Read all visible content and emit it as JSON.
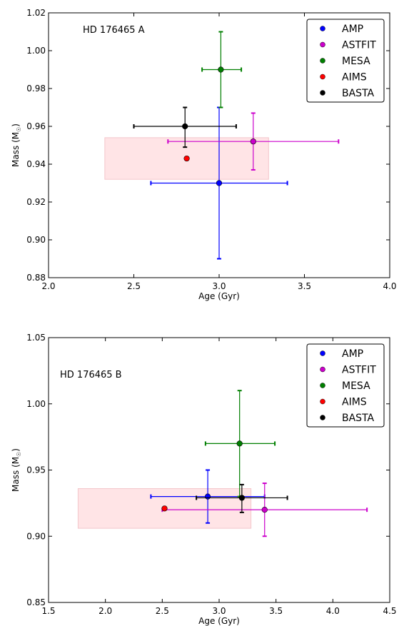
{
  "chart_data": [
    {
      "type": "scatter",
      "annotation": "HD 176465 A",
      "xlabel": "Age (Gyr)",
      "ylabel": "Mass (M",
      "ylabel_sub": "☉",
      "ylabel_close": ")",
      "xlim": [
        2.0,
        4.0
      ],
      "ylim": [
        0.88,
        1.02
      ],
      "xticks": [
        2.0,
        2.5,
        3.0,
        3.5,
        4.0
      ],
      "xtick_labels": [
        "2.0",
        "2.5",
        "3.0",
        "3.5",
        "4.0"
      ],
      "yticks": [
        0.88,
        0.9,
        0.92,
        0.94,
        0.96,
        0.98,
        1.0,
        1.02
      ],
      "ytick_labels": [
        "0.88",
        "0.90",
        "0.92",
        "0.94",
        "0.96",
        "0.98",
        "1.00",
        "1.02"
      ],
      "legend_position": "top-right",
      "shaded_region": {
        "x": [
          2.33,
          3.29
        ],
        "y": [
          0.932,
          0.954
        ],
        "color": "#ffe4e6"
      },
      "series": [
        {
          "name": "AMP",
          "color": "#0000ff",
          "x": 3.0,
          "y": 0.93,
          "xerr": [
            2.6,
            3.4
          ],
          "yerr": [
            0.89,
            0.97
          ]
        },
        {
          "name": "ASTFIT",
          "color": "#cc00cc",
          "x": 3.2,
          "y": 0.952,
          "xerr": [
            2.7,
            3.7
          ],
          "yerr": [
            0.937,
            0.967
          ]
        },
        {
          "name": "MESA",
          "color": "#007f00",
          "x": 3.01,
          "y": 0.99,
          "xerr": [
            2.9,
            3.13
          ],
          "yerr": [
            0.97,
            1.01
          ]
        },
        {
          "name": "AIMS",
          "color": "#ff0000",
          "x": 2.81,
          "y": 0.943,
          "xerr": null,
          "yerr": null
        },
        {
          "name": "BASTA",
          "color": "#000000",
          "x": 2.8,
          "y": 0.96,
          "xerr": [
            2.5,
            3.1
          ],
          "yerr": [
            0.949,
            0.97
          ]
        }
      ]
    },
    {
      "type": "scatter",
      "annotation": "HD 176465 B",
      "xlabel": "Age (Gyr)",
      "ylabel": "Mass (M",
      "ylabel_sub": "☉",
      "ylabel_close": ")",
      "xlim": [
        1.5,
        4.5
      ],
      "ylim": [
        0.85,
        1.05
      ],
      "xticks": [
        1.5,
        2.0,
        2.5,
        3.0,
        3.5,
        4.0,
        4.5
      ],
      "xtick_labels": [
        "1.5",
        "2.0",
        "2.5",
        "3.0",
        "3.5",
        "4.0",
        "4.5"
      ],
      "yticks": [
        0.85,
        0.9,
        0.95,
        1.0,
        1.05
      ],
      "ytick_labels": [
        "0.85",
        "0.90",
        "0.95",
        "1.00",
        "1.05"
      ],
      "legend_position": "top-right",
      "shaded_region": {
        "x": [
          1.76,
          3.28
        ],
        "y": [
          0.906,
          0.936
        ],
        "color": "#ffe4e6"
      },
      "series": [
        {
          "name": "AMP",
          "color": "#0000ff",
          "x": 2.9,
          "y": 0.93,
          "xerr": [
            2.4,
            3.4
          ],
          "yerr": [
            0.91,
            0.95
          ]
        },
        {
          "name": "ASTFIT",
          "color": "#cc00cc",
          "x": 3.4,
          "y": 0.92,
          "xerr": [
            2.5,
            4.3
          ],
          "yerr": [
            0.9,
            0.94
          ]
        },
        {
          "name": "MESA",
          "color": "#007f00",
          "x": 3.18,
          "y": 0.97,
          "xerr": [
            2.88,
            3.49
          ],
          "yerr": [
            0.93,
            1.01
          ]
        },
        {
          "name": "AIMS",
          "color": "#ff0000",
          "x": 2.52,
          "y": 0.921,
          "xerr": null,
          "yerr": null
        },
        {
          "name": "BASTA",
          "color": "#000000",
          "x": 3.2,
          "y": 0.929,
          "xerr": [
            2.8,
            3.6
          ],
          "yerr": [
            0.918,
            0.939
          ]
        }
      ]
    }
  ]
}
